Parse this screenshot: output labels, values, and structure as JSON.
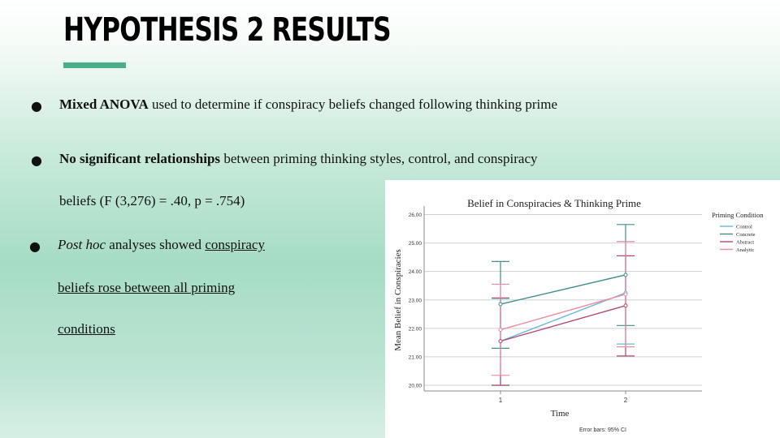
{
  "slide": {
    "title": "HYPOTHESIS 2 RESULTS",
    "accent_color": "#4aae8a"
  },
  "bullets": {
    "b1": {
      "bold": "Mixed ANOVA",
      "rest": " used to determine if conspiracy beliefs changed following thinking prime"
    },
    "b2": {
      "bold": "No significant relationships",
      "rest": " between priming thinking styles, control, and conspiracy",
      "line2": "beliefs (F (3,276) = .40, p = .754)"
    },
    "b3": {
      "italic": "Post hoc",
      "plain": " analyses showed ",
      "u1": "conspiracy",
      "u2": "beliefs rose between all priming",
      "u3": "conditions"
    }
  },
  "chart_data": {
    "type": "line",
    "title": "Belief in Conspiracies & Thinking Prime",
    "xlabel": "Time",
    "ylabel": "Mean Belief in Conspiracies",
    "categories": [
      "1",
      "2"
    ],
    "ylim": [
      19.8,
      26.3
    ],
    "yticks": [
      "20.00",
      "21.00",
      "22.00",
      "23.00",
      "24.00",
      "25.00",
      "26.00"
    ],
    "grid": true,
    "legend_title": "Priming Condition",
    "legend_position": "right",
    "footnote": "Error bars: 95% CI",
    "series": [
      {
        "name": "Control",
        "color": "#6ab7e0",
        "values": [
          21.55,
          23.25
        ],
        "ci_low": [
          20.0,
          21.45
        ],
        "ci_high": [
          23.05,
          25.05
        ]
      },
      {
        "name": "Concrete",
        "color": "#3f8f8c",
        "values": [
          22.85,
          23.88
        ],
        "ci_low": [
          21.3,
          22.1
        ],
        "ci_high": [
          24.35,
          25.65
        ]
      },
      {
        "name": "Abstract",
        "color": "#b04a73",
        "values": [
          21.55,
          22.8
        ],
        "ci_low": [
          20.0,
          21.03
        ],
        "ci_high": [
          23.07,
          24.55
        ]
      },
      {
        "name": "Analytic",
        "color": "#f08a9f",
        "values": [
          21.95,
          23.2
        ],
        "ci_low": [
          20.35,
          21.35
        ],
        "ci_high": [
          23.55,
          25.05
        ]
      }
    ]
  }
}
